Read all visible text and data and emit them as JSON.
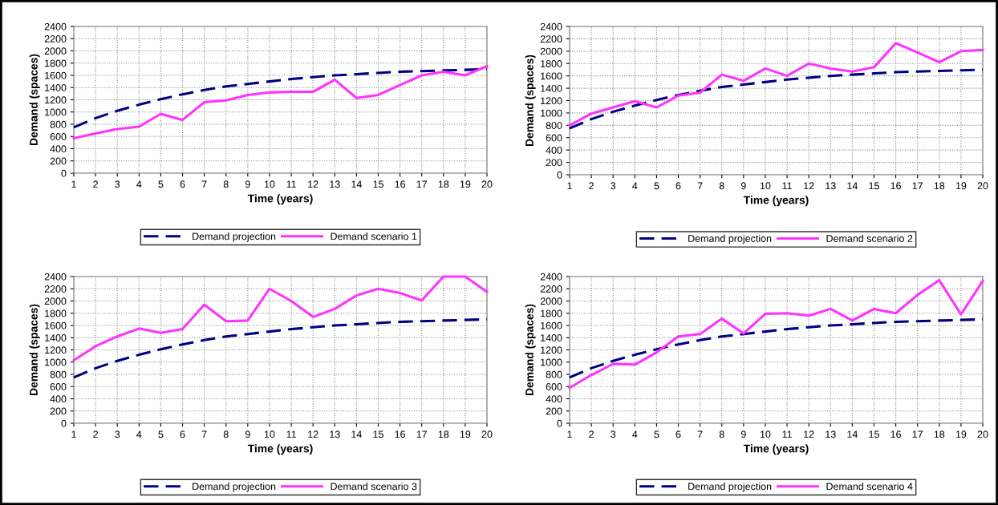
{
  "chart_data": [
    {
      "type": "line",
      "xlabel": "Time (years)",
      "ylabel": "Demand (spaces)",
      "categories": [
        "1",
        "2",
        "3",
        "4",
        "5",
        "6",
        "7",
        "8",
        "9",
        "10",
        "11",
        "12",
        "13",
        "14",
        "15",
        "16",
        "17",
        "18",
        "19",
        "20"
      ],
      "ylim": [
        0,
        2400
      ],
      "yticks": [
        0,
        200,
        400,
        600,
        800,
        1000,
        1200,
        1400,
        1600,
        1800,
        2000,
        2200,
        2400
      ],
      "grid": true,
      "legend": "bottom",
      "marker": "none",
      "series": [
        {
          "name": "Demand projection",
          "color": "#000080",
          "line_style": "dashed",
          "values": [
            750,
            900,
            1020,
            1120,
            1210,
            1290,
            1360,
            1420,
            1460,
            1500,
            1540,
            1570,
            1600,
            1620,
            1640,
            1660,
            1670,
            1680,
            1690,
            1700
          ]
        },
        {
          "name": "Demand scenario 1",
          "color": "#ff33ff",
          "line_style": "solid",
          "values": [
            570,
            650,
            720,
            760,
            970,
            870,
            1160,
            1190,
            1280,
            1320,
            1330,
            1330,
            1530,
            1230,
            1280,
            1440,
            1600,
            1660,
            1600,
            1750
          ]
        }
      ]
    },
    {
      "type": "line",
      "xlabel": "Time (years)",
      "ylabel": "Demand (spaces)",
      "categories": [
        "1",
        "2",
        "3",
        "4",
        "5",
        "6",
        "7",
        "8",
        "9",
        "10",
        "11",
        "12",
        "13",
        "14",
        "15",
        "16",
        "17",
        "18",
        "19",
        "20"
      ],
      "ylim": [
        0,
        2400
      ],
      "yticks": [
        0,
        200,
        400,
        600,
        800,
        1000,
        1200,
        1400,
        1600,
        1800,
        2000,
        2200,
        2400
      ],
      "grid": true,
      "legend": "bottom",
      "marker": "none",
      "series": [
        {
          "name": "Demand projection",
          "color": "#000080",
          "line_style": "dashed",
          "values": [
            750,
            900,
            1020,
            1120,
            1210,
            1290,
            1360,
            1420,
            1460,
            1500,
            1540,
            1570,
            1600,
            1620,
            1640,
            1660,
            1670,
            1680,
            1690,
            1700
          ]
        },
        {
          "name": "Demand scenario 2",
          "color": "#ff33ff",
          "line_style": "solid",
          "values": [
            800,
            990,
            1090,
            1190,
            1090,
            1280,
            1330,
            1620,
            1520,
            1720,
            1600,
            1800,
            1720,
            1670,
            1740,
            2130,
            1980,
            1820,
            2000,
            2020
          ]
        }
      ]
    },
    {
      "type": "line",
      "xlabel": "Time (years)",
      "ylabel": "Demand (spaces)",
      "categories": [
        "1",
        "2",
        "3",
        "4",
        "5",
        "6",
        "7",
        "8",
        "9",
        "10",
        "11",
        "12",
        "13",
        "14",
        "15",
        "16",
        "17",
        "18",
        "19",
        "20"
      ],
      "ylim": [
        0,
        2400
      ],
      "yticks": [
        0,
        200,
        400,
        600,
        800,
        1000,
        1200,
        1400,
        1600,
        1800,
        2000,
        2200,
        2400
      ],
      "grid": true,
      "legend": "bottom",
      "marker": "none",
      "series": [
        {
          "name": "Demand projection",
          "color": "#000080",
          "line_style": "dashed",
          "values": [
            750,
            900,
            1020,
            1120,
            1210,
            1290,
            1360,
            1420,
            1460,
            1500,
            1540,
            1570,
            1600,
            1620,
            1640,
            1660,
            1670,
            1680,
            1690,
            1700
          ]
        },
        {
          "name": "Demand scenario 3",
          "color": "#ff33ff",
          "line_style": "solid",
          "values": [
            1030,
            1260,
            1420,
            1550,
            1480,
            1540,
            1940,
            1670,
            1680,
            2200,
            2000,
            1740,
            1870,
            2090,
            2200,
            2130,
            2010,
            2400,
            2400,
            2150
          ]
        }
      ]
    },
    {
      "type": "line",
      "xlabel": "Time (years)",
      "ylabel": "Demand (spaces)",
      "categories": [
        "1",
        "2",
        "3",
        "4",
        "5",
        "6",
        "7",
        "8",
        "9",
        "10",
        "11",
        "12",
        "13",
        "14",
        "15",
        "16",
        "17",
        "18",
        "19",
        "20"
      ],
      "ylim": [
        0,
        2400
      ],
      "yticks": [
        0,
        200,
        400,
        600,
        800,
        1000,
        1200,
        1400,
        1600,
        1800,
        2000,
        2200,
        2400
      ],
      "grid": true,
      "legend": "bottom",
      "marker": "none",
      "series": [
        {
          "name": "Demand projection",
          "color": "#000080",
          "line_style": "dashed",
          "values": [
            750,
            900,
            1020,
            1120,
            1210,
            1290,
            1360,
            1420,
            1460,
            1500,
            1540,
            1570,
            1600,
            1620,
            1640,
            1660,
            1670,
            1680,
            1690,
            1700
          ]
        },
        {
          "name": "Demand scenario 4",
          "color": "#ff33ff",
          "line_style": "solid",
          "values": [
            580,
            790,
            970,
            960,
            1160,
            1420,
            1460,
            1710,
            1470,
            1790,
            1800,
            1760,
            1870,
            1680,
            1870,
            1800,
            2100,
            2340,
            1780,
            2330
          ]
        }
      ]
    }
  ]
}
